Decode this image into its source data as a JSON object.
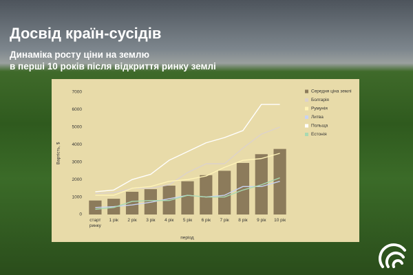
{
  "header": {
    "title": "Досвід країн-сусідів",
    "subtitle_lines": [
      "Динаміка росту ціни на землю",
      "в перші 10 років після відкриття ринку землі"
    ]
  },
  "chart_data": {
    "type": "bar",
    "x_label": "період",
    "y_label": "Вартість, $",
    "categories": [
      "старт ринку",
      "1 рік",
      "2 рік",
      "3 рік",
      "4 рік",
      "5 рік",
      "6 рік",
      "7 рік",
      "8 рік",
      "9 рік",
      "10 рік"
    ],
    "series": [
      {
        "name": "Середня ціна землі",
        "type": "bar",
        "color": "#8c7b5b",
        "values": [
          800,
          900,
          1300,
          1450,
          1650,
          1900,
          2250,
          2500,
          2950,
          3450,
          3750
        ]
      },
      {
        "name": "Болгарія",
        "type": "line",
        "color": "#dcd2cc",
        "values": [
          1200,
          1250,
          1500,
          1500,
          1700,
          2400,
          2900,
          2900,
          3800,
          4600,
          5000
        ]
      },
      {
        "name": "Румунія",
        "type": "line",
        "color": "#fff4b8",
        "values": [
          1100,
          1100,
          1500,
          1600,
          1900,
          2000,
          2200,
          2700,
          3100,
          3200,
          3500
        ]
      },
      {
        "name": "Литва",
        "type": "line",
        "color": "#c9d3f2",
        "values": [
          400,
          450,
          550,
          700,
          900,
          1100,
          1000,
          1100,
          1600,
          1600,
          1900
        ]
      },
      {
        "name": "Польща",
        "type": "line",
        "color": "#ffffff",
        "values": [
          1300,
          1400,
          2000,
          2300,
          3100,
          3600,
          4100,
          4400,
          4800,
          6300,
          6300
        ]
      },
      {
        "name": "Естонія",
        "type": "line",
        "color": "#a9d9b2",
        "values": [
          300,
          400,
          750,
          800,
          800,
          1100,
          1000,
          1000,
          1400,
          1700,
          2100
        ]
      }
    ],
    "ylim": [
      0,
      7000
    ],
    "yticks": [
      0,
      1000,
      2000,
      3000,
      4000,
      5000,
      6000,
      7000
    ],
    "grid": false
  }
}
